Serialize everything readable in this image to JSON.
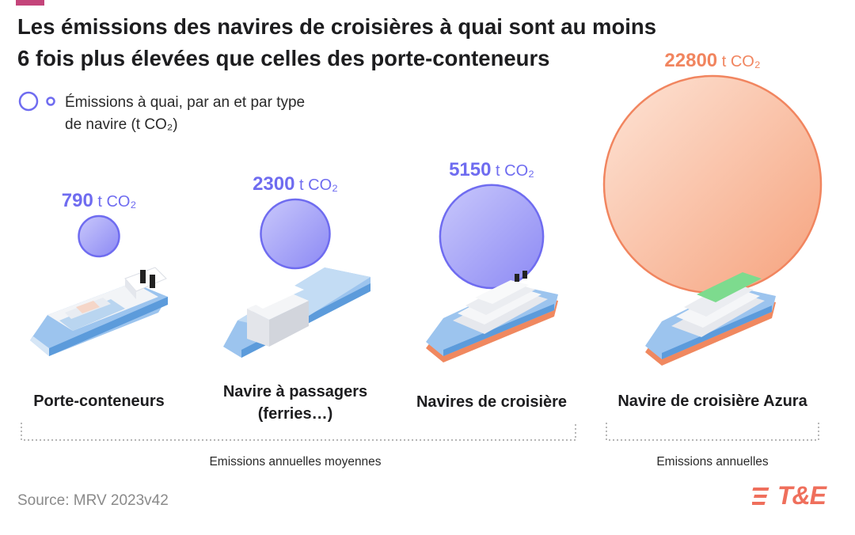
{
  "header": {
    "title_line1": "Les émissions des navires de croisières à quai sont au moins",
    "title_line2": "6 fois plus élevées que celles des porte-conteneurs"
  },
  "legend": {
    "line1": "Émissions à quai, par an et par type",
    "line2": "de navire (t CO₂)"
  },
  "chart_data": {
    "type": "bubble",
    "title": "Les émissions des navires de croisières à quai sont au moins 6 fois plus élevées que celles des porte-conteneurs",
    "unit": "t CO₂",
    "categories": [
      "Porte-conteneurs",
      "Navire à passagers (ferries…)",
      "Navires de croisière",
      "Navire de croisière Azura"
    ],
    "values": [
      790,
      2300,
      5150,
      22800
    ],
    "value_labels": [
      "790",
      "2300",
      "5150",
      "22800"
    ],
    "colors": [
      "#6f6cf0",
      "#6f6cf0",
      "#6f6cf0",
      "#f1855f"
    ],
    "groups": [
      {
        "label": "Emissions annuelles moyennes",
        "members": [
          0,
          1,
          2
        ]
      },
      {
        "label": "Emissions annuelles",
        "members": [
          3
        ]
      }
    ]
  },
  "categories": {
    "c0": "Porte-conteneurs",
    "c1_line1": "Navire à passagers",
    "c1_line2": "(ferries…)",
    "c2": "Navires de croisière",
    "c3": "Navire de croisière Azura"
  },
  "groups": {
    "g0": "Emissions annuelles moyennes",
    "g1": "Emissions annuelles"
  },
  "unit": "t CO₂",
  "footer": {
    "source": "Source: MRV 2023v42",
    "logo_text": "T&E"
  },
  "colors": {
    "blue": "#6f6cf0",
    "orange": "#f1855f",
    "accent": "#c4447a"
  }
}
